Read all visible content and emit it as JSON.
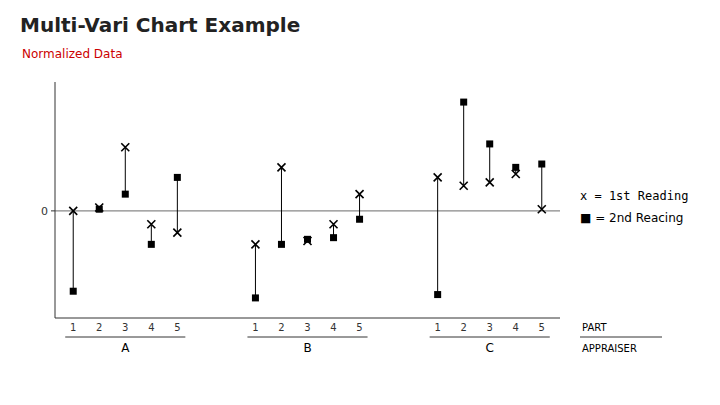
{
  "chart_data": {
    "type": "multivari",
    "title": "Multi-Vari Chart Example",
    "subtitle": "Normalized Data",
    "subtitle_color": "#cc0000",
    "x_label": "PART",
    "group_label": "APPRAISER",
    "groups": [
      "A",
      "B",
      "C"
    ],
    "categories": [
      1,
      2,
      3,
      4,
      5,
      1,
      2,
      3,
      4,
      5,
      1,
      2,
      3,
      4,
      5
    ],
    "series": [
      {
        "name": "x = 1st Reading",
        "marker": "x",
        "color": "#000000",
        "values": [
          0.0,
          0.02,
          0.38,
          -0.08,
          -0.13,
          -0.2,
          0.26,
          -0.18,
          -0.08,
          0.1,
          0.2,
          0.15,
          0.17,
          0.22,
          0.01
        ]
      },
      {
        "name": "■ = 2nd Reacing",
        "marker": "square",
        "color": "#000000",
        "values": [
          -0.48,
          0.01,
          0.1,
          -0.2,
          0.2,
          -0.52,
          -0.2,
          -0.17,
          -0.16,
          -0.05,
          -0.5,
          0.65,
          0.4,
          0.26,
          0.28
        ]
      }
    ],
    "ylim": [
      -0.64,
      0.77
    ],
    "yticks": [
      0
    ],
    "grid": true
  }
}
